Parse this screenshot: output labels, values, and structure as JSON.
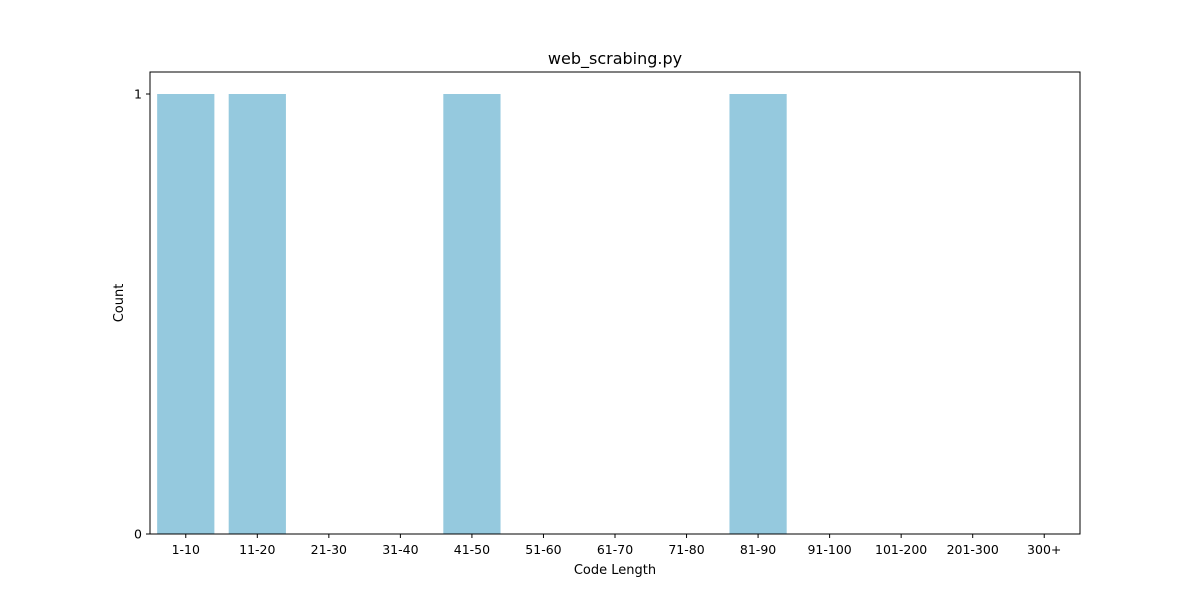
{
  "chart_data": {
    "type": "bar",
    "title": "web_scrabing.py",
    "xlabel": "Code Length",
    "ylabel": "Count",
    "categories": [
      "1-10",
      "11-20",
      "21-30",
      "31-40",
      "41-50",
      "51-60",
      "61-70",
      "71-80",
      "81-90",
      "91-100",
      "101-200",
      "201-300",
      "300+"
    ],
    "values": [
      1,
      1,
      0,
      0,
      1,
      0,
      0,
      0,
      1,
      0,
      0,
      0,
      0
    ],
    "yticks": [
      "0",
      "1"
    ],
    "ylim": [
      0,
      1.05
    ],
    "grid": false,
    "bar_color": "#95c9de",
    "axes_color": "#000000"
  }
}
